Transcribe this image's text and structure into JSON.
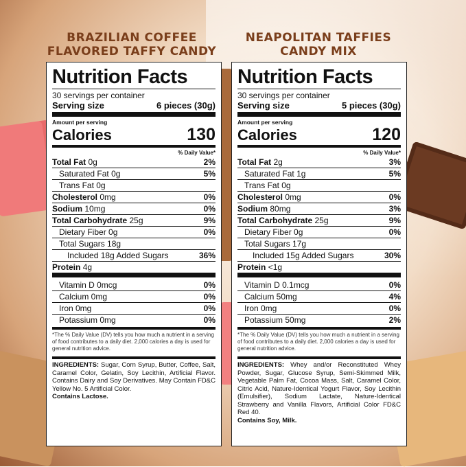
{
  "left": {
    "product_title_line1": "BRAZILIAN COFFEE",
    "product_title_line2": "FLAVORED TAFFY CANDY",
    "facts_title": "Nutrition Facts",
    "servings": "30 servings per container",
    "serving_size_label": "Serving size",
    "serving_size_value": "6 pieces (30g)",
    "amount_per_serving": "Amount per serving",
    "calories_label": "Calories",
    "calories_value": "130",
    "dv_header": "% Daily Value*",
    "rows": [
      {
        "label": "Total Fat",
        "amount": "0g",
        "dv": "2%",
        "bold": true,
        "indent": 0
      },
      {
        "label": "Saturated Fat",
        "amount": "0g",
        "dv": "5%",
        "bold": false,
        "indent": 1
      },
      {
        "label": "Trans Fat",
        "amount": "0g",
        "dv": "",
        "bold": false,
        "indent": 1
      },
      {
        "label": "Cholesterol",
        "amount": "0mg",
        "dv": "0%",
        "bold": true,
        "indent": 0
      },
      {
        "label": "Sodium",
        "amount": "10mg",
        "dv": "0%",
        "bold": true,
        "indent": 0
      },
      {
        "label": "Total Carbohydrate",
        "amount": "25g",
        "dv": "9%",
        "bold": true,
        "indent": 0
      },
      {
        "label": "Dietary Fiber",
        "amount": "0g",
        "dv": "0%",
        "bold": false,
        "indent": 1
      },
      {
        "label": "Total Sugars",
        "amount": "18g",
        "dv": "",
        "bold": false,
        "indent": 1
      },
      {
        "label": "Included 18g Added Sugars",
        "amount": "",
        "dv": "36%",
        "bold": false,
        "indent": 2
      }
    ],
    "protein_label": "Protein",
    "protein_amount": "4g",
    "vitamins": [
      {
        "label": "Vitamin D 0mcg",
        "dv": "0%"
      },
      {
        "label": "Calcium 0mg",
        "dv": "0%"
      },
      {
        "label": "Iron 0mg",
        "dv": "0%"
      },
      {
        "label": "Potassium 0mg",
        "dv": "0%"
      }
    ],
    "footnote": "*The % Daily Value (DV) tells you how much a nutrient in a serving of food contributes to a daily diet. 2,000 calories a day is used for general nutrition advice.",
    "ingredients_label": "INGREDIENTS:",
    "ingredients_text": " Sugar, Corn Syrup, Butter, Coffee, Salt, Caramel Color, Gelatin, Soy Lecithin, Artificial Flavor. Contains Dairy and Soy Derivatives. May Contain FD&C Yellow No. 5 Artificial Color.",
    "contains": "Contains Lactose."
  },
  "right": {
    "product_title_line1": "NEAPOLITAN TAFFIES",
    "product_title_line2": "CANDY MIX",
    "facts_title": "Nutrition Facts",
    "servings": "30 servings per container",
    "serving_size_label": "Serving size",
    "serving_size_value": "5 pieces (30g)",
    "amount_per_serving": "Amount per serving",
    "calories_label": "Calories",
    "calories_value": "120",
    "dv_header": "% Daily Value*",
    "rows": [
      {
        "label": "Total Fat",
        "amount": "2g",
        "dv": "3%",
        "bold": true,
        "indent": 0
      },
      {
        "label": "Saturated Fat",
        "amount": "1g",
        "dv": "5%",
        "bold": false,
        "indent": 1
      },
      {
        "label": "Trans Fat",
        "amount": "0g",
        "dv": "",
        "bold": false,
        "indent": 1
      },
      {
        "label": "Cholesterol",
        "amount": "0mg",
        "dv": "0%",
        "bold": true,
        "indent": 0
      },
      {
        "label": "Sodium",
        "amount": "80mg",
        "dv": "3%",
        "bold": true,
        "indent": 0
      },
      {
        "label": "Total Carbohydrate",
        "amount": "25g",
        "dv": "9%",
        "bold": true,
        "indent": 0
      },
      {
        "label": "Dietary Fiber",
        "amount": "0g",
        "dv": "0%",
        "bold": false,
        "indent": 1
      },
      {
        "label": "Total Sugars",
        "amount": "17g",
        "dv": "",
        "bold": false,
        "indent": 1
      },
      {
        "label": "Included 15g Added Sugars",
        "amount": "",
        "dv": "30%",
        "bold": false,
        "indent": 2
      }
    ],
    "protein_label": "Protein",
    "protein_amount": "<1g",
    "vitamins": [
      {
        "label": "Vitamin D 0.1mcg",
        "dv": "0%"
      },
      {
        "label": "Calcium 50mg",
        "dv": "4%"
      },
      {
        "label": "Iron 0mg",
        "dv": "0%"
      },
      {
        "label": "Potassium 50mg",
        "dv": "2%"
      }
    ],
    "footnote": "*The % Daily Value (DV) tells you how much a nutrient in a serving of food contributes to a daily diet. 2,000 calories a day is used for general nutrition advice.",
    "ingredients_label": "INGREDIENTS:",
    "ingredients_text": " Whey and/or Reconstituted Whey Powder, Sugar, Glucose Syrup, Semi-Skimmed Milk, Vegetable Palm Fat, Cocoa Mass, Salt, Caramel Color, Citric Acid, Nature-Identical Yogurt Flavor, Soy Lecithin (Emulsifier), Sodium Lactate, Nature-Identical Strawberry and Vanilla Flavors, Artificial Color FD&C Red 40.",
    "contains": "Contains Soy, Milk."
  }
}
